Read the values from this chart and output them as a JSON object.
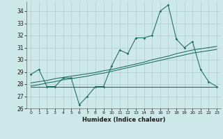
{
  "x": [
    0,
    1,
    2,
    3,
    4,
    5,
    6,
    7,
    8,
    9,
    10,
    11,
    12,
    13,
    14,
    15,
    16,
    17,
    18,
    19,
    20,
    21,
    22,
    23
  ],
  "y_main": [
    28.8,
    29.2,
    27.8,
    27.8,
    28.5,
    28.5,
    26.3,
    27.0,
    27.8,
    27.8,
    29.5,
    30.8,
    30.5,
    31.8,
    31.8,
    32.0,
    34.0,
    34.5,
    31.7,
    31.0,
    31.5,
    29.2,
    28.2,
    27.8
  ],
  "y_trend_upper": [
    28.1,
    28.2,
    28.3,
    28.45,
    28.55,
    28.65,
    28.75,
    28.85,
    28.95,
    29.1,
    29.2,
    29.35,
    29.5,
    29.65,
    29.8,
    30.0,
    30.15,
    30.3,
    30.5,
    30.65,
    30.8,
    30.9,
    31.0,
    31.1
  ],
  "y_trend_lower": [
    27.85,
    27.95,
    28.1,
    28.2,
    28.35,
    28.45,
    28.55,
    28.65,
    28.8,
    28.9,
    29.05,
    29.2,
    29.35,
    29.5,
    29.65,
    29.8,
    29.95,
    30.1,
    30.25,
    30.4,
    30.55,
    30.65,
    30.75,
    30.85
  ],
  "y_flat": [
    27.8,
    27.8,
    27.8,
    27.8,
    27.8,
    27.8,
    27.8,
    27.8,
    27.8,
    27.8,
    27.8,
    27.8,
    27.8,
    27.8,
    27.8,
    27.8,
    27.8,
    27.8,
    27.8,
    27.8,
    27.8,
    27.8,
    27.8,
    27.8
  ],
  "line_color": "#1a6b5a",
  "bg_color": "#cce8e8",
  "grid_color": "#b0cece",
  "ylim": [
    26,
    34.8
  ],
  "yticks": [
    26,
    27,
    28,
    29,
    30,
    31,
    32,
    33,
    34
  ],
  "xticks": [
    0,
    1,
    2,
    3,
    4,
    5,
    6,
    7,
    8,
    9,
    10,
    11,
    12,
    13,
    14,
    15,
    16,
    17,
    18,
    19,
    20,
    21,
    22,
    23
  ],
  "xlabel": "Humidex (Indice chaleur)"
}
